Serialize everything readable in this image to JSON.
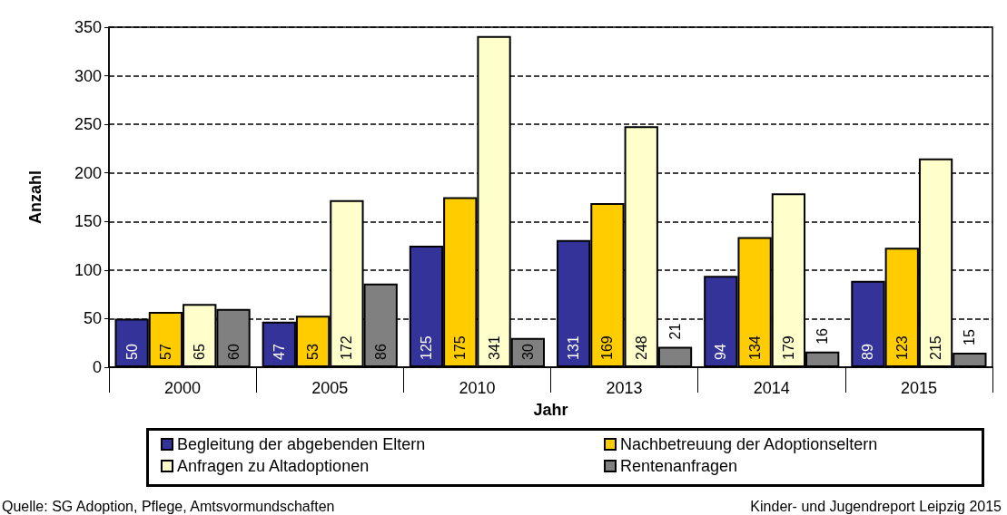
{
  "chart_data": {
    "type": "bar",
    "xlabel": "Jahr",
    "ylabel": "Anzahl",
    "categories": [
      "2000",
      "2005",
      "2010",
      "2013",
      "2014",
      "2015"
    ],
    "series": [
      {
        "name": "Begleitung der abgebenden Eltern",
        "color": "#333399",
        "values": [
          50,
          47,
          125,
          131,
          94,
          89
        ]
      },
      {
        "name": "Nachbetreuung der Adoptionseltern",
        "color": "#ffcc00",
        "values": [
          57,
          53,
          175,
          169,
          134,
          123
        ]
      },
      {
        "name": "Anfragen zu Altadoptionen",
        "color": "#ffffcc",
        "values": [
          65,
          172,
          341,
          248,
          179,
          215
        ]
      },
      {
        "name": "Rentenanfragen",
        "color": "#808080",
        "values": [
          60,
          86,
          30,
          21,
          16,
          15
        ]
      }
    ],
    "ylim": [
      0,
      350
    ],
    "yticks": [
      0,
      50,
      100,
      150,
      200,
      250,
      300,
      350
    ],
    "grid": "y",
    "legend": "bottom",
    "data_labels": true,
    "annotations": [
      "Quelle: SG Adoption, Pflege, Amtsvormundschaften",
      "Kinder- und Jugendreport Leipzig 2015"
    ]
  }
}
